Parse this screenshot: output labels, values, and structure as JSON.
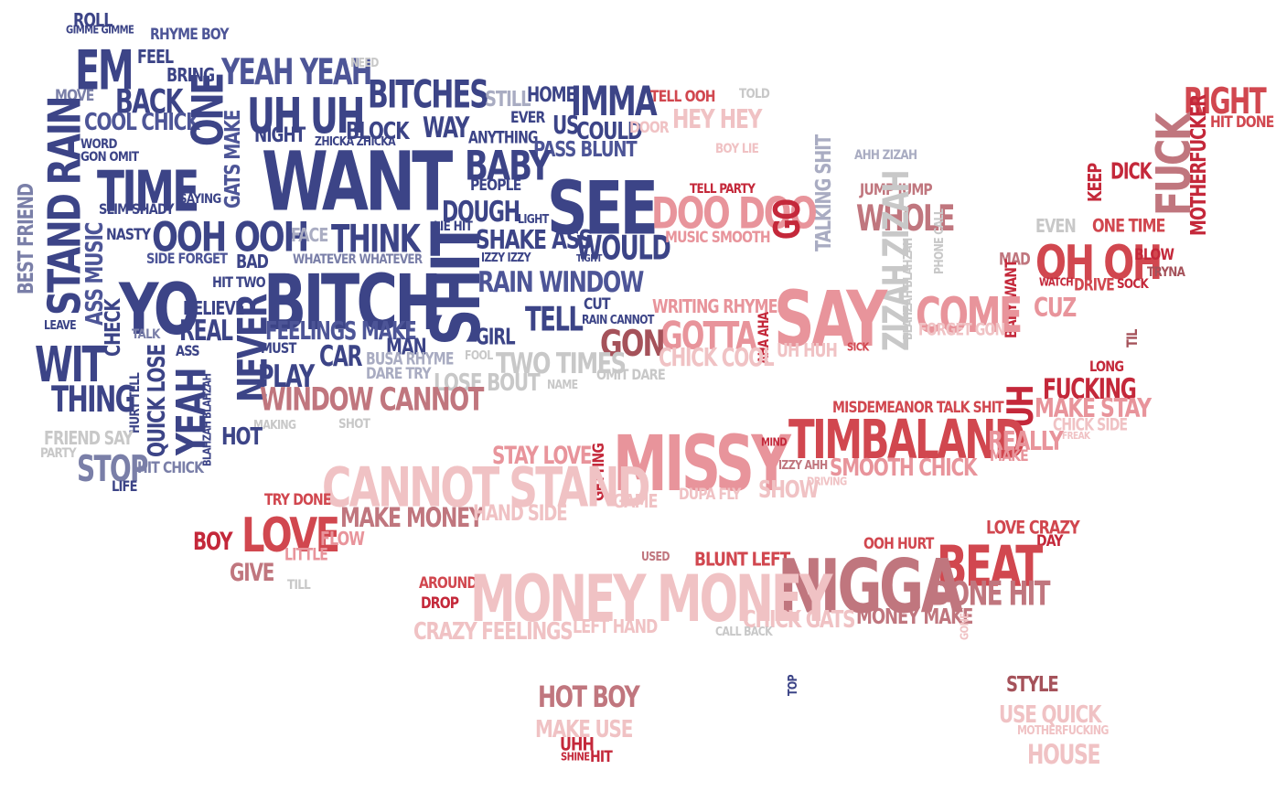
{
  "palette": {
    "navy": "#3c4487",
    "blue": "#4d5597",
    "slate": "#7a7fa8",
    "grey_blue": "#a9acc2",
    "light_grey": "#c8c8c8",
    "light_pink": "#f0c2c4",
    "pink": "#e8949b",
    "rose": "#c0767e",
    "red": "#d1474f",
    "crimson": "#c4283a",
    "dark_rose": "#a5525a"
  },
  "words": [
    "ROLL",
    "GIMME GIMME",
    "RHYME BOY",
    "EM",
    "FEEL",
    "BRING",
    "YEAH YEAH",
    "NEED",
    "MOVE",
    "BACK",
    "UH UH",
    "BITCHES",
    "STILL",
    "HOME",
    "IMMA",
    "TELL OOH",
    "TOLD",
    "RIGHT",
    "COOL CHICK",
    "ONE",
    "BLOCK",
    "WAY",
    "EVER",
    "US",
    "COULD",
    "DOOR",
    "HEY HEY",
    "HIT DONE",
    "WORD",
    "NIGHT",
    "ZHICKA ZHICKA",
    "ANYTHING",
    "PASS BLUNT",
    "BOY LIE",
    "MOTHERFUCKER",
    "GON OMIT",
    "GATS MAKE",
    "WANT",
    "BABY",
    "AHH ZIZAH",
    "FUCK",
    "TIME",
    "TALKING SHIT",
    "SAYING",
    "STAND RAIN",
    "PEOPLE",
    "SEE",
    "TELL PARTY",
    "JUMP JUMP",
    "DICK",
    "KEEP",
    "SLIM SHADY",
    "BEST FRIEND",
    "DOUGH",
    "LIGHT",
    "DOO DOO",
    "GO",
    "WHOLE",
    "LIE HIT",
    "ONE TIME",
    "EVEN",
    "NASTY",
    "OOH OOH",
    "FACE",
    "THINK",
    "SHAKE ASS",
    "WOULD",
    "ASS MUSIC",
    "MUSIC SMOOTH",
    "PHONE CALL",
    "OH OH",
    "BLOW",
    "SIDE FORGET",
    "BAD",
    "WHATEVER WHATEVER",
    "IZZY IZZY",
    "TIGHT",
    "MAD",
    "TRYNA",
    "YO",
    "HIT TWO",
    "BITCH",
    "SHIT",
    "RAIN WINDOW",
    "DRIVE",
    "BABY WANT",
    "WATCH",
    "SOCK",
    "ZIZAH ZIZAH",
    "BLAHZAH BLAHZAH",
    "BELIEVE",
    "CUT",
    "WRITING RHYMES",
    "SAY",
    "COME",
    "CUZ",
    "LEAVE",
    "CHECK",
    "TALK",
    "REAL",
    "FEELINGS MAKE",
    "TELL",
    "RAIN CANNOT",
    "GOTTA",
    "AHA AHA",
    "FORGET GON",
    "GIRL",
    "ASS",
    "MUST",
    "MAN",
    "NEVER",
    "CAR",
    "GON",
    "CHICK COOL",
    "UH HUH",
    "SICK",
    "TIL",
    "WIT",
    "BUSA RHYME",
    "FOOL",
    "TWO TIMES",
    "LONG",
    "PLAY",
    "DARE TRY",
    "LOSE BOUT",
    "OMIT DARE",
    "NAME",
    "THING",
    "HURT TELL",
    "QUICK LOSE",
    "WINDOW CANNOT",
    "FUCKING",
    "BLAHZAH BLAHZAH",
    "MISDEMEANOR TALK SHIT",
    "UH",
    "MAKE STAY",
    "YEAH",
    "FRIEND SAY",
    "MAKING",
    "SHOT",
    "CHICK SIDE",
    "TIMBALAND",
    "HOT",
    "PARTY",
    "MISSY",
    "REALLY",
    "FREAK",
    "STAY LOVE",
    "MIND",
    "MAKE",
    "STOP",
    "HIT CHICK",
    "GETTING",
    "IZZY AHH",
    "SMOOTH CHICK",
    "LIFE",
    "CANNOT STAND",
    "SHOW",
    "DRIVING",
    "TRY DONE",
    "GAME",
    "DUPA FLY",
    "MAKE MONEY",
    "HAND SIDE",
    "BOY",
    "LOVE",
    "FLOW",
    "LOVE CRAZY",
    "OOH HURT",
    "DAY",
    "LITTLE",
    "BEAT",
    "USED",
    "BLUNT LEFT",
    "GIVE",
    "NIGGA",
    "TILL",
    "DONE HIT",
    "AROUND",
    "MONEY MONEY",
    "DROP",
    "CHICK GATS",
    "MONEY MAKE",
    "CRAZY FEELINGS",
    "LEFT HAND",
    "GONE",
    "CALL BACK",
    "HOT BOY",
    "TOP",
    "STYLE",
    "USE QUICK",
    "MAKE USE",
    "MOTHERFUCKING",
    "UHH",
    "HOUSE",
    "HIT",
    "SHINE"
  ]
}
